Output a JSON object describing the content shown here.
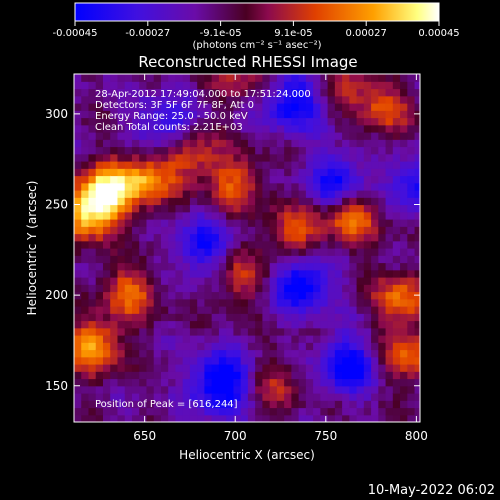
{
  "chart_data": {
    "type": "heatmap",
    "title": "Reconstructed RHESSI Image",
    "xlabel": "Heliocentric X (arcsec)",
    "ylabel": "Heliocentric Y (arcsec)",
    "xlim": [
      611,
      802
    ],
    "ylim": [
      130,
      322
    ],
    "x_ticks": [
      650,
      700,
      750,
      800
    ],
    "y_ticks": [
      150,
      200,
      250,
      300
    ],
    "colorbar": {
      "ticks": [
        "-0.00045",
        "-0.00027",
        "-9.1e-05",
        "9.1e-05",
        "0.00027",
        "0.00045"
      ],
      "unit_label": "(photons cm⁻² s⁻¹ asec⁻²)",
      "range": [
        -0.00045,
        0.00045
      ],
      "colormap": [
        "#0000ff",
        "#6a0ca8",
        "#8b0a4e",
        "#e04000",
        "#ff9a00",
        "#ffff80",
        "#ffffff"
      ]
    },
    "info_lines": [
      "28-Apr-2012 17:49:04.000 to 17:51:24.000",
      "Detectors: 3F 5F 6F 7F 8F, Att 0",
      "Energy Range: 25.0 - 50.0 keV",
      "Clean     Total counts: 2.21E+03"
    ],
    "peak_label": "Position of Peak = [616,244]",
    "peak_position": [
      616,
      244
    ],
    "bright_regions": [
      {
        "x": 616,
        "y": 244,
        "value": 0.00045
      },
      {
        "x": 628,
        "y": 256,
        "value": 0.0004
      },
      {
        "x": 648,
        "y": 262,
        "value": 0.00035
      },
      {
        "x": 672,
        "y": 276,
        "value": 0.0003
      },
      {
        "x": 698,
        "y": 260,
        "value": 0.00028
      },
      {
        "x": 700,
        "y": 208,
        "value": 0.00022
      },
      {
        "x": 730,
        "y": 232,
        "value": 0.00028
      },
      {
        "x": 762,
        "y": 242,
        "value": 0.00036
      },
      {
        "x": 790,
        "y": 196,
        "value": 0.00032
      },
      {
        "x": 795,
        "y": 165,
        "value": 0.0003
      },
      {
        "x": 620,
        "y": 170,
        "value": 0.0004
      },
      {
        "x": 640,
        "y": 200,
        "value": 0.0003
      },
      {
        "x": 780,
        "y": 300,
        "value": 0.00025
      },
      {
        "x": 760,
        "y": 320,
        "value": 0.00022
      },
      {
        "x": 700,
        "y": 320,
        "value": 0.0002
      },
      {
        "x": 720,
        "y": 148,
        "value": 0.00018
      }
    ],
    "dark_regions": [
      {
        "x": 690,
        "y": 150,
        "value": -0.00045
      },
      {
        "x": 735,
        "y": 205,
        "value": -0.0004
      },
      {
        "x": 755,
        "y": 260,
        "value": -0.00035
      },
      {
        "x": 800,
        "y": 260,
        "value": -0.0003
      },
      {
        "x": 760,
        "y": 160,
        "value": -0.00035
      },
      {
        "x": 680,
        "y": 225,
        "value": -0.0003
      },
      {
        "x": 730,
        "y": 305,
        "value": -0.00035
      },
      {
        "x": 660,
        "y": 290,
        "value": -0.0003
      }
    ]
  },
  "footer": {
    "timestamp": "10-May-2022 06:02"
  }
}
